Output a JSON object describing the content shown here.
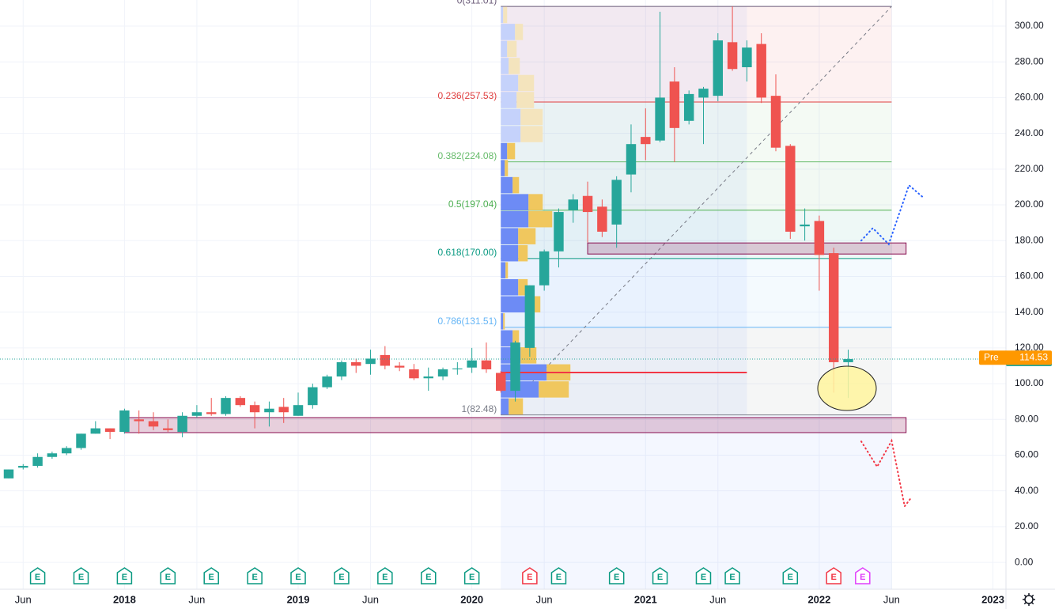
{
  "chart_data": {
    "type": "candlestick",
    "categories": [
      null,
      "Jun",
      null,
      null,
      null,
      null,
      null,
      null,
      "2018",
      null,
      null,
      null,
      null,
      "Jun",
      null,
      null,
      null,
      null,
      null,
      null,
      "2019",
      null,
      null,
      null,
      null,
      "Jun",
      null,
      null,
      null,
      null,
      null,
      null,
      "2020",
      null,
      null,
      null,
      null,
      "Jun",
      null,
      null,
      null,
      null,
      null,
      null,
      "2021",
      null,
      null,
      null,
      null,
      "Jun",
      null,
      null,
      null,
      null,
      null,
      null,
      "2022",
      null,
      null,
      null,
      null,
      "Jun",
      null,
      null,
      null,
      null,
      null,
      null,
      "2023"
    ],
    "open": [
      47,
      53,
      54,
      59,
      61,
      64,
      72,
      75,
      73,
      80,
      79,
      75,
      73,
      82,
      84,
      83,
      92,
      88,
      84,
      87,
      82,
      88,
      98,
      104,
      112,
      111,
      116,
      110,
      108,
      103,
      104,
      108,
      109,
      113,
      106,
      96,
      120,
      155,
      174,
      197,
      205,
      199,
      189,
      217,
      238,
      236,
      269,
      247,
      260,
      261,
      291,
      277,
      290,
      261,
      233,
      188,
      191,
      173,
      112,
      null,
      null,
      null,
      null,
      null,
      null,
      null,
      null,
      null,
      null
    ],
    "high": [
      52,
      55,
      61,
      62,
      65,
      72,
      79,
      75,
      86,
      85,
      84,
      80,
      84,
      88,
      92,
      93,
      93,
      90,
      90,
      92,
      95,
      100,
      105,
      113,
      114,
      119,
      121,
      112,
      111,
      109,
      109,
      112,
      120,
      123,
      107,
      124,
      155,
      175,
      198,
      206,
      213,
      203,
      216,
      245,
      254,
      308,
      277,
      264,
      266,
      296,
      311,
      292,
      296,
      273,
      234,
      198,
      194,
      176,
      119,
      null,
      null,
      null,
      null,
      null,
      null,
      null,
      null,
      null,
      null
    ],
    "low": [
      47,
      52,
      53,
      58,
      60,
      63,
      72,
      69,
      72,
      72,
      74,
      73,
      70,
      81,
      82,
      82,
      87,
      75,
      76,
      78,
      82,
      86,
      97,
      102,
      106,
      105,
      108,
      107,
      102,
      96,
      102,
      105,
      106,
      106,
      95,
      90,
      115,
      152,
      165,
      190,
      179,
      182,
      176,
      207,
      225,
      235,
      224,
      245,
      234,
      258,
      275,
      269,
      257,
      230,
      181,
      180,
      152,
      95,
      92,
      null,
      null,
      null,
      null,
      null,
      null,
      null,
      null,
      null,
      null
    ],
    "close": [
      52,
      54,
      59,
      61,
      64,
      72,
      75,
      73,
      85,
      79,
      76,
      74,
      82,
      84,
      83,
      92,
      88,
      84,
      86,
      84,
      88,
      98,
      104,
      112,
      110,
      114,
      110,
      109,
      103,
      104,
      108,
      108.5,
      113,
      108,
      96,
      123,
      155,
      174,
      196,
      203,
      196,
      185,
      214,
      234,
      234,
      260,
      243,
      262,
      265,
      292,
      276,
      288,
      260,
      232,
      185,
      189,
      172,
      112,
      113.76,
      null,
      null,
      null,
      null,
      null,
      null,
      null,
      null,
      null,
      null
    ],
    "up_color": "#26a69a",
    "down_color": "#ef5350",
    "xlim": [
      -0.6,
      68.9
    ],
    "ylim": [
      -15.0,
      314.6
    ],
    "yticks": [
      {
        "value": 0,
        "label": "0.00"
      },
      {
        "value": 20,
        "label": "20.00"
      },
      {
        "value": 40,
        "label": "40.00"
      },
      {
        "value": 60,
        "label": "60.00"
      },
      {
        "value": 80,
        "label": "80.00"
      },
      {
        "value": 100,
        "label": "100.00"
      },
      {
        "value": 120,
        "label": "120.00"
      },
      {
        "value": 140,
        "label": "140.00"
      },
      {
        "value": 160,
        "label": "160.00"
      },
      {
        "value": 180,
        "label": "180.00"
      },
      {
        "value": 200,
        "label": "200.00"
      },
      {
        "value": 220,
        "label": "220.00"
      },
      {
        "value": 240,
        "label": "240.00"
      },
      {
        "value": 260,
        "label": "260.00"
      },
      {
        "value": 280,
        "label": "280.00"
      },
      {
        "value": 300,
        "label": "300.00"
      }
    ],
    "grid": true,
    "fib": {
      "start": 34,
      "end": 61,
      "levels": [
        {
          "label": "0(311.01)",
          "value": 311.01,
          "color": "#6a5a78"
        },
        {
          "label": "0.236(257.53)",
          "value": 257.53,
          "color": "#e03e3e"
        },
        {
          "label": "0.382(224.08)",
          "value": 224.08,
          "color": "#66bb6a"
        },
        {
          "label": "0.5(197.04)",
          "value": 197.04,
          "color": "#4caf50"
        },
        {
          "label": "0.618(170.00)",
          "value": 170.0,
          "color": "#089981"
        },
        {
          "label": "0.786(131.51)",
          "value": 131.51,
          "color": "#64b5f6"
        },
        {
          "label": "1(82.48)",
          "value": 82.48,
          "color": "#787b86"
        }
      ]
    },
    "volume_profile": {
      "start": 34,
      "end": 51,
      "poc": 106.2,
      "poc_color": "#f23645",
      "value_area_rows": 16,
      "up": [
        10,
        48,
        58,
        25,
        15,
        3,
        32,
        22,
        6,
        22,
        22,
        35,
        35,
        15,
        5,
        8,
        25,
        25,
        20,
        22,
        10,
        8,
        18,
        3
      ],
      "down": [
        18,
        38,
        30,
        20,
        8,
        2,
        18,
        12,
        3,
        12,
        22,
        30,
        18,
        8,
        4,
        10,
        28,
        28,
        22,
        20,
        14,
        12,
        10,
        5
      ]
    },
    "zones": [
      {
        "top": 178.7,
        "bottom": 172.5,
        "start": 40,
        "end": 62
      },
      {
        "top": 81,
        "bottom": 72.6,
        "start": 8,
        "end": 62
      }
    ],
    "zone_color": "#880e4f",
    "projections": [
      {
        "color": "#2962ff",
        "x": [
          58.9,
          59.7,
          60.8,
          62.2,
          63.2
        ],
        "y": [
          180,
          187,
          178,
          211,
          204
        ]
      },
      {
        "color": "#f23645",
        "x": [
          58.9,
          60.0,
          61.0,
          61.9,
          62.4
        ],
        "y": [
          67.7,
          53.5,
          68,
          31.4,
          36.7
        ]
      }
    ],
    "last_price": 113.76,
    "pre_market": {
      "label": "Pre",
      "value": 114.53
    },
    "earnings": [
      {
        "index": 2,
        "label": "E",
        "color": "#089981"
      },
      {
        "index": 5,
        "label": "E",
        "color": "#089981"
      },
      {
        "index": 8,
        "label": "E",
        "color": "#089981"
      },
      {
        "index": 11,
        "label": "E",
        "color": "#089981"
      },
      {
        "index": 14,
        "label": "E",
        "color": "#089981"
      },
      {
        "index": 17,
        "label": "E",
        "color": "#089981"
      },
      {
        "index": 20,
        "label": "E",
        "color": "#089981"
      },
      {
        "index": 23,
        "label": "E",
        "color": "#089981"
      },
      {
        "index": 26,
        "label": "E",
        "color": "#089981"
      },
      {
        "index": 29,
        "label": "E",
        "color": "#089981"
      },
      {
        "index": 32,
        "label": "E",
        "color": "#089981"
      },
      {
        "index": 36,
        "label": "E",
        "color": "#f23645"
      },
      {
        "index": 38,
        "label": "E",
        "color": "#089981"
      },
      {
        "index": 42,
        "label": "E",
        "color": "#089981"
      },
      {
        "index": 45,
        "label": "E",
        "color": "#089981"
      },
      {
        "index": 48,
        "label": "E",
        "color": "#089981"
      },
      {
        "index": 50,
        "label": "E",
        "color": "#089981"
      },
      {
        "index": 54,
        "label": "E",
        "color": "#089981"
      },
      {
        "index": 57,
        "label": "E",
        "color": "#f23645"
      },
      {
        "index": 59,
        "label": "E",
        "color": "#e040fb"
      }
    ]
  }
}
